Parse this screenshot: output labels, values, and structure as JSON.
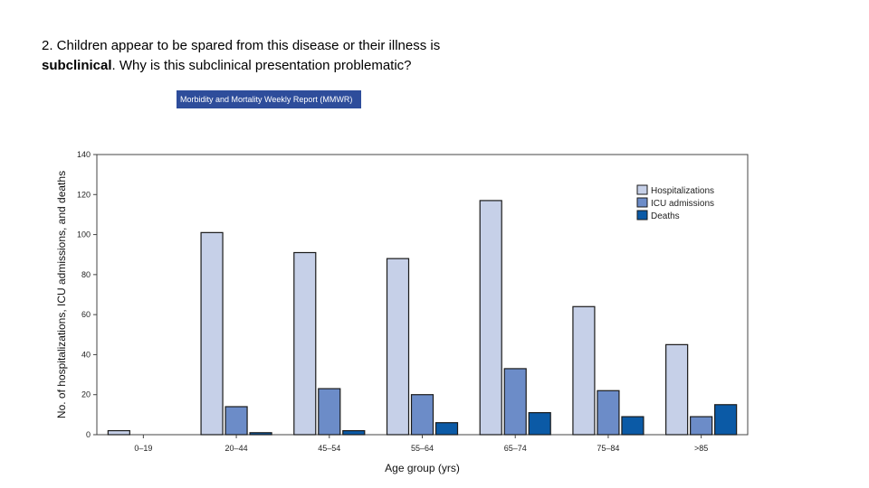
{
  "question": {
    "part1": "2.  Children appear to be spared from this disease or their illness is ",
    "bold": "subclinical",
    "part2": ".  Why is this subclinical presentation problematic?"
  },
  "source_badge": "Morbidity and Mortality Weekly Report (MMWR)",
  "colors": {
    "hospitalizations": "#c6d0e8",
    "icu": "#6c8cc8",
    "deaths": "#0b5aa6",
    "badge": "#2e4d9b"
  },
  "chart_data": {
    "type": "bar",
    "title": "",
    "xlabel": "Age group (yrs)",
    "ylabel": "No. of hospitalizations, ICU admissions, and deaths",
    "ylim": [
      0,
      140
    ],
    "yticks": [
      0,
      20,
      40,
      60,
      80,
      100,
      120,
      140
    ],
    "categories": [
      "0–19",
      "20–44",
      "45–54",
      "55–64",
      "65–74",
      "75–84",
      ">85"
    ],
    "series": [
      {
        "name": "Hospitalizations",
        "values": [
          2,
          101,
          91,
          88,
          117,
          64,
          45
        ]
      },
      {
        "name": "ICU admissions",
        "values": [
          0,
          14,
          23,
          20,
          33,
          22,
          9
        ]
      },
      {
        "name": "Deaths",
        "values": [
          0,
          1,
          2,
          6,
          11,
          9,
          15
        ]
      }
    ],
    "legend": "top-right",
    "grid": false
  }
}
